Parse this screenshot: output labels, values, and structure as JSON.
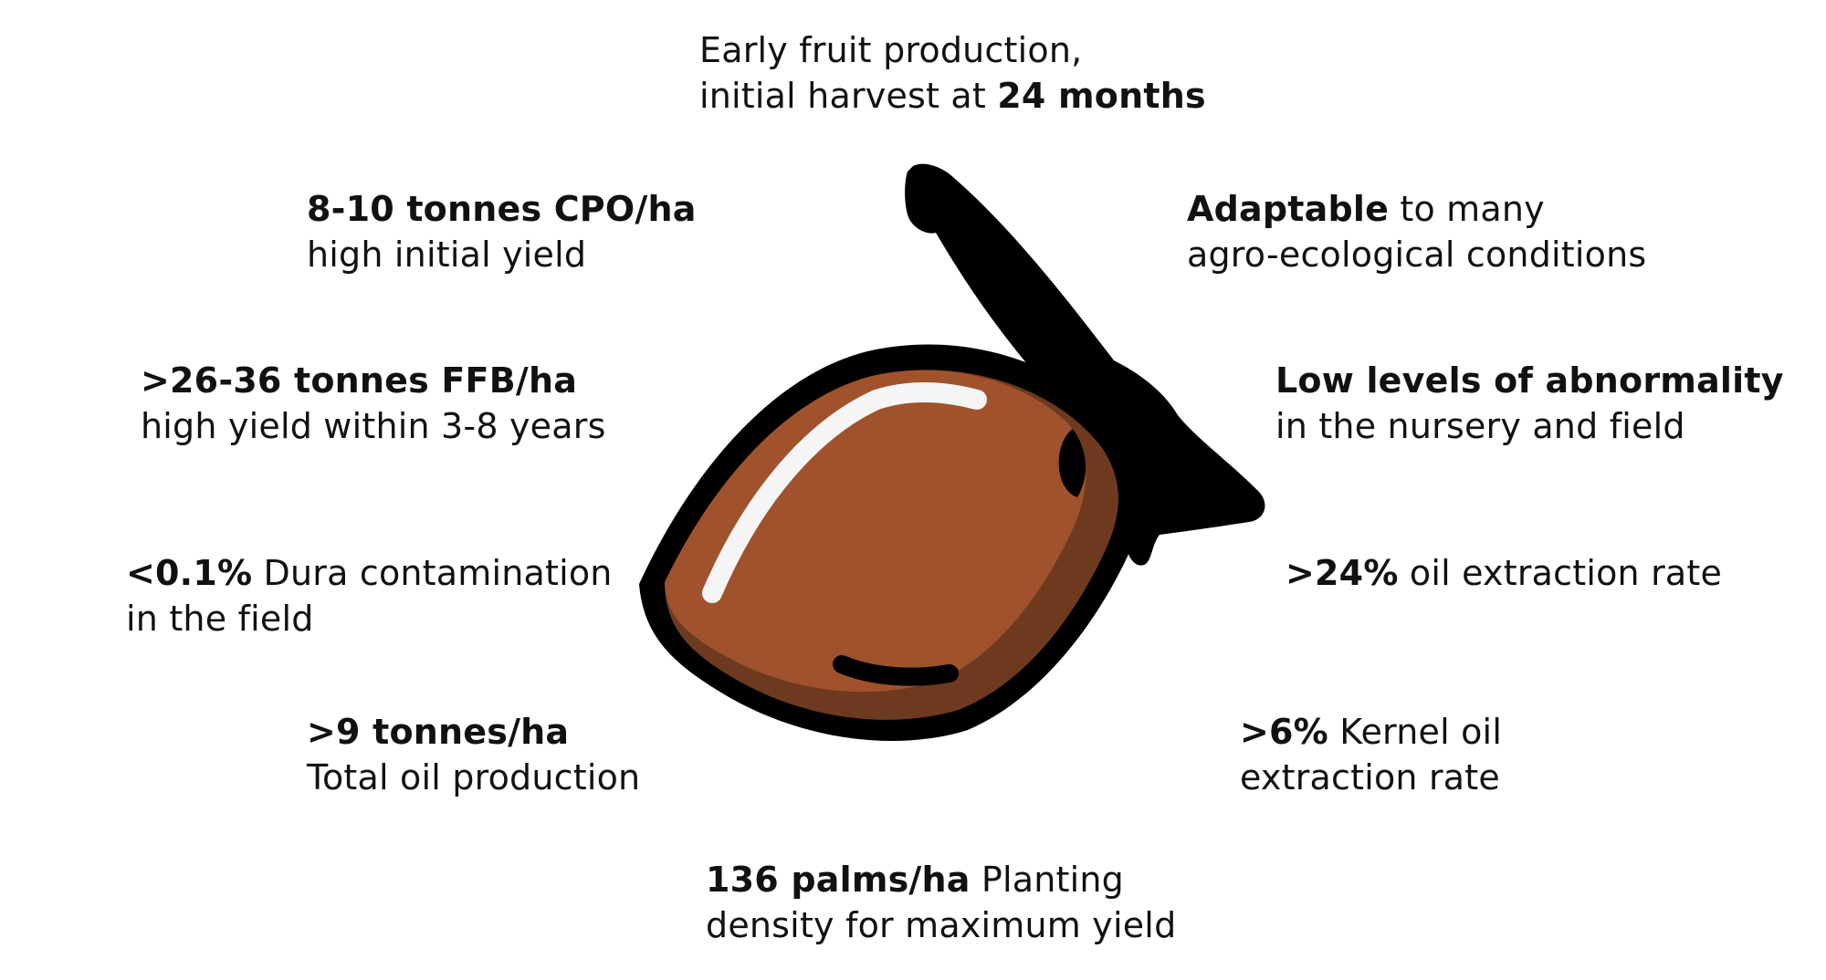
{
  "colors": {
    "fruit_body": "#a0522d",
    "fruit_shadow": "#6e3a1f",
    "outline": "#000000",
    "highlight": "#f5f5f5",
    "text": "#111111",
    "background": "#ffffff"
  },
  "fruit": {
    "icon": "oil-palm-fruit-icon"
  },
  "callouts": {
    "top": {
      "line1": "Early fruit production,",
      "line2_pre": "initial harvest at ",
      "line2_bold": "24 months"
    },
    "cpo": {
      "bold": "8-10 tonnes CPO/ha",
      "text": "high initial yield"
    },
    "adapt": {
      "bold": "Adaptable",
      "rest": " to many",
      "line2": "agro-ecological conditions"
    },
    "ffb": {
      "bold": ">26-36 tonnes FFB/ha",
      "text": "high yield within 3-8 years"
    },
    "abn": {
      "bold": "Low levels of abnormality",
      "text": "in the nursery and field"
    },
    "dura": {
      "bold": "<0.1%",
      "rest": " Dura contamination",
      "line2": "in the field"
    },
    "oer": {
      "bold": ">24%",
      "rest": " oil extraction rate"
    },
    "oil": {
      "bold": ">9 tonnes/ha",
      "text": "Total oil production"
    },
    "kernel": {
      "bold": ">6%",
      "rest": " Kernel oil",
      "line2": "extraction rate"
    },
    "palms": {
      "bold": "136 palms/ha",
      "rest": " Planting",
      "line2": "density for maximum yield"
    }
  }
}
